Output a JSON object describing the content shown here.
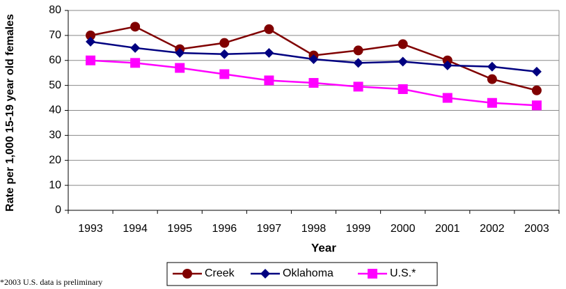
{
  "chart_data": {
    "type": "line",
    "xlabel": "Year",
    "ylabel": "Rate per 1,000 15-19 year old females",
    "footnote": "*2003 U.S. data is preliminary",
    "categories": [
      "1993",
      "1994",
      "1995",
      "1996",
      "1997",
      "1998",
      "1999",
      "2000",
      "2001",
      "2002",
      "2003"
    ],
    "series": [
      {
        "name": "Creek",
        "color": "#800000",
        "marker": "circle",
        "values": [
          70,
          73.5,
          64.5,
          67,
          72.5,
          62,
          64,
          66.5,
          60,
          52.5,
          48
        ]
      },
      {
        "name": "Oklahoma",
        "color": "#000080",
        "marker": "diamond",
        "values": [
          67.5,
          65,
          63,
          62.5,
          63,
          60.5,
          59,
          59.5,
          58,
          57.5,
          55.5
        ]
      },
      {
        "name": "U.S.*",
        "color": "#ff00ff",
        "marker": "square",
        "values": [
          60,
          59,
          57,
          54.5,
          52,
          51,
          49.5,
          48.5,
          45,
          43,
          42
        ]
      }
    ],
    "ylim": [
      0,
      80
    ],
    "yticks": [
      0,
      10,
      20,
      30,
      40,
      50,
      60,
      70,
      80
    ],
    "grid": true,
    "legend": "bottom"
  }
}
